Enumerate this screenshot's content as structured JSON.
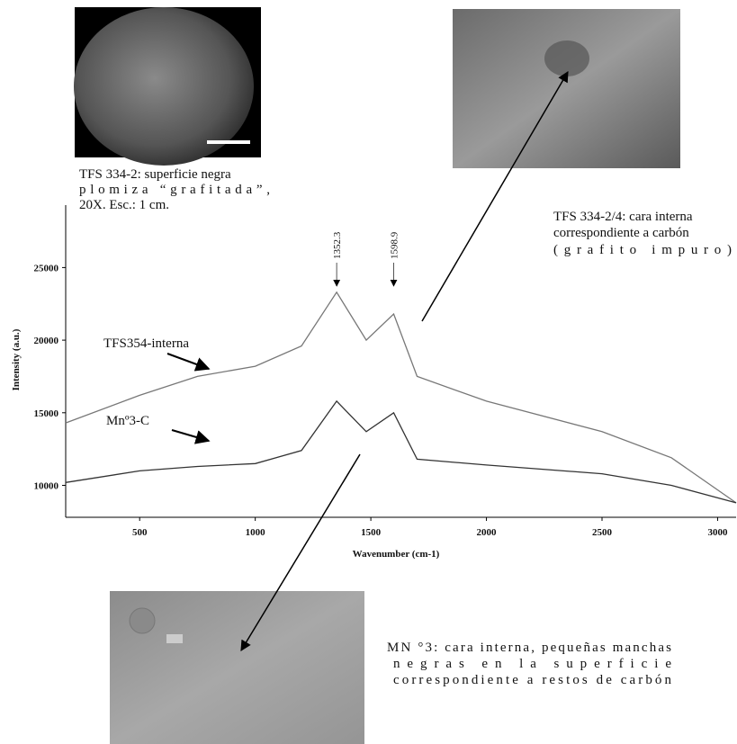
{
  "chart_data": {
    "type": "line",
    "x_label": "Wavenumber (cm-1)",
    "y_label": "Intensity (a.u.)",
    "xlim": [
      180,
      3080
    ],
    "ylim": [
      7800,
      29300
    ],
    "xticks": [
      500,
      1000,
      1500,
      2000,
      2500,
      3000
    ],
    "yticks": [
      10000,
      15000,
      20000,
      25000
    ],
    "x": [
      180,
      500,
      750,
      1000,
      1200,
      1352,
      1480,
      1599,
      1700,
      2000,
      2500,
      2800,
      3080
    ],
    "series": [
      {
        "name": "TFS354-interna",
        "color": "#777777",
        "values": [
          14300,
          16200,
          17500,
          18200,
          19600,
          23300,
          20000,
          21800,
          17500,
          15800,
          13700,
          11900,
          8800
        ]
      },
      {
        "name": "Mnº3-C",
        "color": "#333333",
        "values": [
          10200,
          11000,
          11300,
          11500,
          12400,
          15800,
          13700,
          15000,
          11800,
          11400,
          10800,
          10000,
          8800
        ]
      }
    ],
    "peak_labels": [
      1352.3,
      1598.9
    ]
  },
  "photos": [
    {
      "caption": [
        "TFS 334-2: superficie negra",
        "plomiza “grafitada”,",
        "20X. Esc.: 1 cm."
      ]
    },
    {
      "caption": [
        "TFS 334-2/4: cara interna",
        "correspondiente a carbón",
        "(grafito impuro)"
      ]
    },
    {
      "caption": [
        "MN °3: cara interna, pequeñas manchas",
        "negras en la superficie",
        "correspondiente a restos de carbón"
      ]
    }
  ]
}
